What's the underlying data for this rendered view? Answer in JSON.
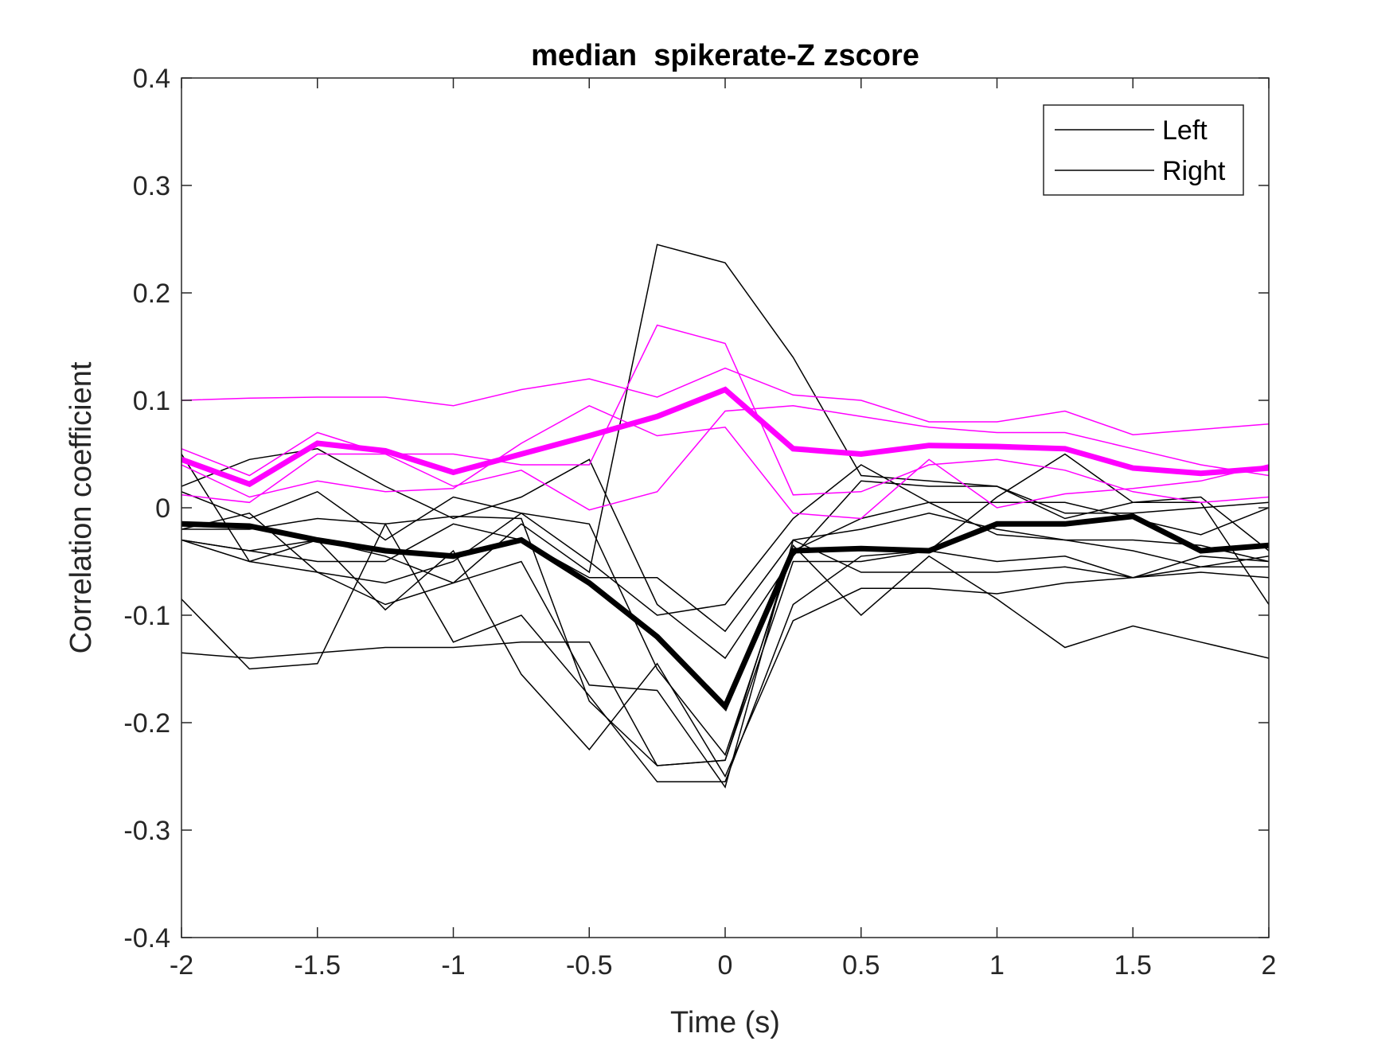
{
  "chart_data": {
    "type": "line",
    "title": "median  spikerate-Z zscore",
    "xlabel": "Time (s)",
    "ylabel": "Correlation coefficient",
    "xlim": [
      -2,
      2
    ],
    "ylim": [
      -0.4,
      0.4
    ],
    "xticks": [
      -2,
      -1.5,
      -1,
      -0.5,
      0,
      0.5,
      1,
      1.5,
      2
    ],
    "yticks": [
      -0.4,
      -0.3,
      -0.2,
      -0.1,
      0,
      0.1,
      0.2,
      0.3,
      0.4
    ],
    "xtick_labels": [
      "-2",
      "-1.5",
      "-1",
      "-0.5",
      "0",
      "0.5",
      "1",
      "1.5",
      "2"
    ],
    "ytick_labels": [
      "-0.4",
      "-0.3",
      "-0.2",
      "-0.1",
      "0",
      "0.1",
      "0.2",
      "0.3",
      "0.4"
    ],
    "grid": false,
    "legend": {
      "placement": "top-right",
      "entries": [
        {
          "label": "Left",
          "color": "#000000"
        },
        {
          "label": "Right",
          "color": "#000000"
        }
      ]
    },
    "colors": {
      "black": "#000000",
      "magenta": "#ff00ff",
      "axis": "#262626"
    },
    "x": [
      -2,
      -1.75,
      -1.5,
      -1.25,
      -1,
      -0.75,
      -0.5,
      -0.25,
      0,
      0.25,
      0.5,
      0.75,
      1,
      1.25,
      1.5,
      1.75,
      2
    ],
    "series": [
      {
        "color": "#000000",
        "width": 1.5,
        "values": [
          0.015,
          -0.01,
          0.015,
          -0.03,
          0.01,
          -0.005,
          -0.05,
          -0.1,
          -0.09,
          -0.01,
          0.04,
          0.005,
          0.005,
          0.005,
          -0.01,
          -0.025,
          0.0
        ]
      },
      {
        "color": "#000000",
        "width": 1.5,
        "values": [
          -0.02,
          -0.005,
          -0.06,
          -0.09,
          -0.07,
          -0.015,
          -0.06,
          0.245,
          0.228,
          0.14,
          0.03,
          0.025,
          0.02,
          -0.01,
          0.005,
          0.01,
          -0.04
        ]
      },
      {
        "color": "#000000",
        "width": 1.5,
        "values": [
          -0.03,
          -0.05,
          -0.06,
          -0.07,
          -0.05,
          -0.005,
          -0.015,
          -0.15,
          -0.23,
          -0.04,
          -0.01,
          0.005,
          -0.025,
          -0.03,
          -0.04,
          -0.055,
          -0.055
        ]
      },
      {
        "color": "#000000",
        "width": 1.5,
        "values": [
          -0.02,
          -0.02,
          -0.01,
          -0.015,
          -0.008,
          -0.01,
          -0.18,
          -0.24,
          -0.235,
          -0.05,
          -0.05,
          -0.04,
          -0.05,
          -0.045,
          -0.065,
          -0.055,
          -0.045
        ]
      },
      {
        "color": "#000000",
        "width": 1.5,
        "values": [
          -0.03,
          -0.04,
          -0.03,
          -0.045,
          -0.07,
          -0.05,
          -0.165,
          -0.17,
          -0.26,
          -0.03,
          -0.06,
          -0.06,
          -0.06,
          -0.055,
          -0.065,
          -0.045,
          -0.05
        ]
      },
      {
        "color": "#000000",
        "width": 1.5,
        "values": [
          0.05,
          -0.05,
          -0.03,
          -0.095,
          -0.04,
          -0.155,
          -0.225,
          -0.145,
          -0.25,
          -0.105,
          -0.075,
          -0.075,
          -0.08,
          -0.07,
          -0.065,
          -0.06,
          -0.065
        ]
      },
      {
        "color": "#000000",
        "width": 1.5,
        "values": [
          -0.085,
          -0.15,
          -0.145,
          -0.015,
          -0.125,
          -0.1,
          -0.175,
          -0.255,
          -0.255,
          -0.09,
          -0.045,
          -0.04,
          0.01,
          0.05,
          0.005,
          0.005,
          -0.09
        ]
      },
      {
        "color": "#000000",
        "width": 1.5,
        "values": [
          -0.135,
          -0.14,
          -0.135,
          -0.13,
          -0.13,
          -0.125,
          -0.125,
          -0.24,
          -0.235,
          -0.035,
          -0.1,
          -0.045,
          -0.085,
          -0.13,
          -0.11,
          -0.125,
          -0.14
        ]
      },
      {
        "color": "#000000",
        "width": 1.5,
        "values": [
          -0.03,
          -0.04,
          -0.05,
          -0.05,
          -0.015,
          -0.03,
          -0.065,
          -0.065,
          -0.115,
          -0.03,
          -0.02,
          -0.005,
          -0.02,
          -0.03,
          -0.03,
          -0.035,
          -0.05
        ]
      },
      {
        "color": "#000000",
        "width": 1.5,
        "values": [
          0.02,
          0.045,
          0.055,
          0.02,
          -0.01,
          0.01,
          0.045,
          -0.09,
          -0.14,
          -0.045,
          0.025,
          0.02,
          0.02,
          -0.005,
          -0.005,
          0.0,
          0.005
        ]
      },
      {
        "color": "#ff00ff",
        "width": 1.5,
        "values": [
          0.1,
          0.102,
          0.103,
          0.103,
          0.095,
          0.11,
          0.12,
          0.103,
          0.13,
          0.105,
          0.1,
          0.08,
          0.08,
          0.09,
          0.068,
          0.073,
          0.078
        ]
      },
      {
        "color": "#ff00ff",
        "width": 1.5,
        "values": [
          0.055,
          0.03,
          0.07,
          0.05,
          0.05,
          0.04,
          0.04,
          0.17,
          0.153,
          0.012,
          0.015,
          0.04,
          0.045,
          0.035,
          0.015,
          0.005,
          0.01
        ]
      },
      {
        "color": "#ff00ff",
        "width": 1.5,
        "values": [
          0.04,
          0.01,
          0.025,
          0.015,
          0.018,
          0.06,
          0.095,
          0.067,
          0.075,
          -0.005,
          -0.01,
          0.045,
          0.0,
          0.013,
          0.018,
          0.025,
          0.04
        ]
      },
      {
        "color": "#ff00ff",
        "width": 1.5,
        "values": [
          0.012,
          0.005,
          0.05,
          0.05,
          0.02,
          0.035,
          -0.002,
          0.015,
          0.09,
          0.095,
          0.085,
          0.075,
          0.07,
          0.07,
          0.055,
          0.04,
          0.03
        ]
      },
      {
        "color": "#ff00ff",
        "width": 7,
        "values": [
          0.045,
          0.022,
          0.06,
          0.053,
          0.033,
          0.05,
          0.067,
          0.085,
          0.11,
          0.055,
          0.05,
          0.058,
          0.057,
          0.055,
          0.037,
          0.032,
          0.037
        ]
      },
      {
        "color": "#000000",
        "width": 7,
        "values": [
          -0.015,
          -0.017,
          -0.03,
          -0.04,
          -0.045,
          -0.03,
          -0.07,
          -0.12,
          -0.185,
          -0.04,
          -0.038,
          -0.04,
          -0.015,
          -0.015,
          -0.008,
          -0.04,
          -0.035
        ]
      }
    ]
  }
}
